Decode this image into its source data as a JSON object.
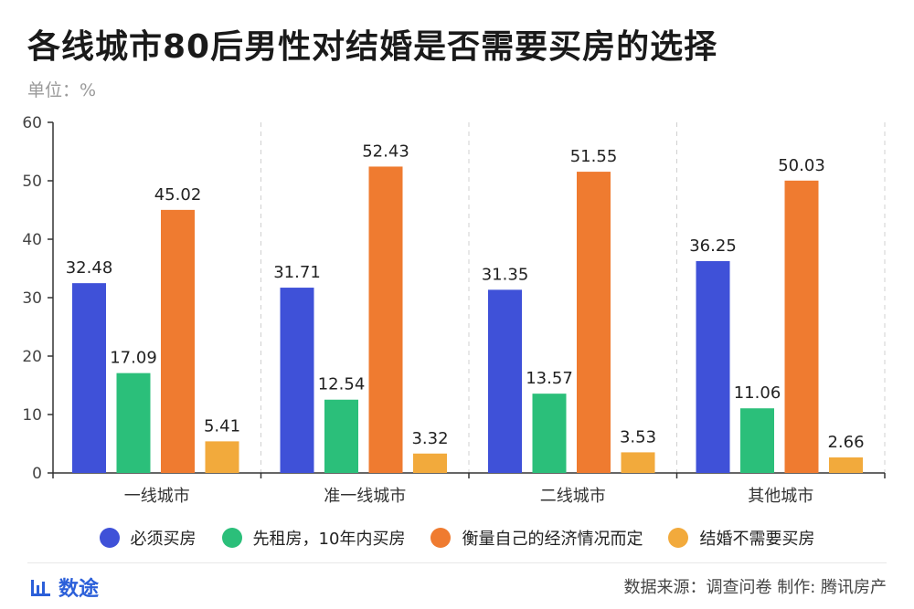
{
  "title": "各线城市80后男性对结婚是否需要买房的选择",
  "unit": "单位：%",
  "footer": {
    "brand": "数途",
    "source": "数据来源：调查问卷  制作: 腾讯房产"
  },
  "colors": {
    "series": [
      "#3f51d8",
      "#2bbf7a",
      "#ef7b30",
      "#f2aa3c"
    ],
    "axis": "#333333",
    "grid": "#d0d0d0",
    "brand": "#2b5fd9"
  },
  "chart_data": {
    "type": "bar",
    "categories": [
      "一线城市",
      "准一线城市",
      "二线城市",
      "其他城市"
    ],
    "series": [
      {
        "name": "必须买房",
        "values": [
          32.48,
          31.71,
          31.35,
          36.25
        ]
      },
      {
        "name": "先租房，10年内买房",
        "values": [
          17.09,
          12.54,
          13.57,
          11.06
        ]
      },
      {
        "name": "衡量自己的经济情况而定",
        "values": [
          45.02,
          52.43,
          51.55,
          50.03
        ]
      },
      {
        "name": "结婚不需要买房",
        "values": [
          5.41,
          3.32,
          3.53,
          2.66
        ]
      }
    ],
    "ylim": [
      0,
      60
    ],
    "yticks": [
      0,
      10,
      20,
      30,
      40,
      50,
      60
    ],
    "legend_position": "bottom",
    "grid": "vertical dashed separators between categories"
  }
}
